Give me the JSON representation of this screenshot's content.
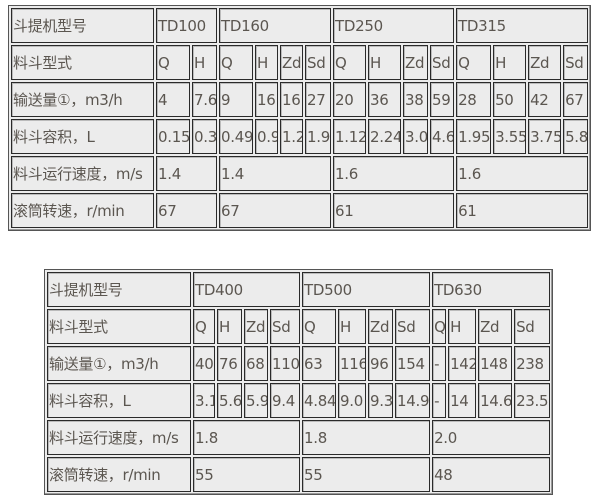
{
  "table1": {
    "rows": [
      {
        "label": "斗提机型号",
        "cells": [
          {
            "text": "TD100",
            "span": 2
          },
          {
            "text": "TD160",
            "span": 4
          },
          {
            "text": "TD250",
            "span": 4
          },
          {
            "text": "TD315",
            "span": 4
          }
        ]
      },
      {
        "label": "料斗型式",
        "cells": [
          "Q",
          "H",
          "Q",
          "H",
          "Zd",
          "Sd",
          "Q",
          "H",
          "Zd",
          "Sd",
          "Q",
          "H",
          "Zd",
          "Sd"
        ]
      },
      {
        "label": "输送量①，m3/h",
        "cells": [
          "4",
          "7.6",
          "9",
          "16",
          "16",
          "27",
          "20",
          "36",
          "38",
          "59",
          "28",
          "50",
          "42",
          "67"
        ]
      },
      {
        "label": "料斗容积，L",
        "cells": [
          "0.15",
          "0.3",
          "0.49",
          "0.9",
          "1.2",
          "1.9",
          "1.12",
          "2.24",
          "3.0",
          "4.6",
          "1.95",
          "3.55",
          "3.75",
          "5.8"
        ]
      },
      {
        "label": "料斗运行速度，m/s",
        "cells": [
          {
            "text": "1.4",
            "span": 2
          },
          {
            "text": "1.4",
            "span": 4
          },
          {
            "text": "1.6",
            "span": 4
          },
          {
            "text": "1.6",
            "span": 4
          }
        ]
      },
      {
        "label": "滚筒转速，r/min",
        "cells": [
          {
            "text": "67",
            "span": 2
          },
          {
            "text": "67",
            "span": 4
          },
          {
            "text": "61",
            "span": 4
          },
          {
            "text": "61",
            "span": 4
          }
        ]
      }
    ]
  },
  "table2": {
    "rows": [
      {
        "label": "斗提机型号",
        "cells": [
          {
            "text": "TD400",
            "span": 4
          },
          {
            "text": "TD500",
            "span": 4
          },
          {
            "text": "TD630",
            "span": 4
          }
        ]
      },
      {
        "label": "料斗型式",
        "cells": [
          "Q",
          "H",
          "Zd",
          "Sd",
          "Q",
          "H",
          "Zd",
          "Sd",
          "Q",
          "H",
          "Zd",
          "Sd"
        ]
      },
      {
        "label": "输送量①，m3/h",
        "cells": [
          "40",
          "76",
          "68",
          "110",
          "63",
          "116",
          "96",
          "154",
          "-",
          "142",
          "148",
          "238"
        ]
      },
      {
        "label": "料斗容积，L",
        "cells": [
          "3.1",
          "5.6",
          "5.9",
          "9.4",
          "4.84",
          "9.0",
          "9.3",
          "14.9",
          "-",
          "14",
          "14.6",
          "23.5"
        ]
      },
      {
        "label": "料斗运行速度，m/s",
        "cells": [
          {
            "text": "1.8",
            "span": 4
          },
          {
            "text": "1.8",
            "span": 4
          },
          {
            "text": "2.0",
            "span": 4
          }
        ]
      },
      {
        "label": "滚筒转速，r/min",
        "cells": [
          {
            "text": "55",
            "span": 4
          },
          {
            "text": "55",
            "span": 4
          },
          {
            "text": "48",
            "span": 4
          }
        ]
      }
    ]
  }
}
